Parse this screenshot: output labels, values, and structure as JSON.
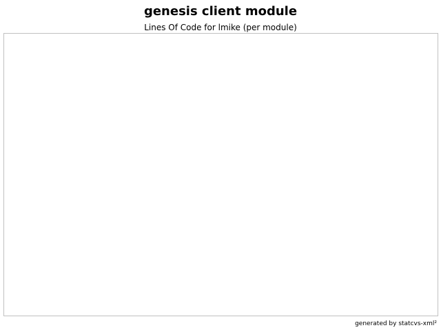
{
  "chart_data": {
    "type": "line",
    "title": "genesis client module",
    "subtitle": "Lines Of Code for lmike (per module)",
    "series": [],
    "xlabel": "",
    "ylabel": "",
    "grid": false,
    "legend": "none"
  },
  "footer": {
    "credit": "generated by statcvs-xml²"
  }
}
